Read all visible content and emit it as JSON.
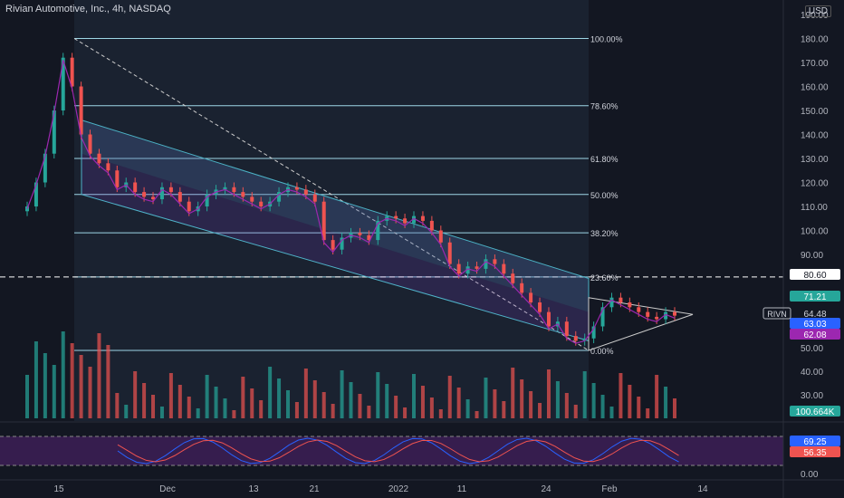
{
  "header": {
    "title": "Rivian Automotive, Inc., 4h, NASDAQ",
    "currency": "USD"
  },
  "chart_data": {
    "type": "candlestick",
    "price_axis": {
      "ticks": [
        "190.00",
        "180.00",
        "170.00",
        "160.00",
        "150.00",
        "140.00",
        "130.00",
        "120.00",
        "110.00",
        "100.00",
        "90.00"
      ]
    },
    "volume_axis": {
      "ticks": [
        "50.00",
        "40.00",
        "30.00"
      ]
    },
    "rsi_axis": {
      "ticks": [
        "69.25",
        "56.35",
        "0.00"
      ]
    },
    "time_axis": {
      "ticks": [
        "15",
        "Dec",
        "13",
        "21",
        "2022",
        "11",
        "24",
        "Feb",
        "14"
      ]
    },
    "fib_levels": [
      {
        "label": "100.00%",
        "price": 180
      },
      {
        "label": "78.60%",
        "price": 152
      },
      {
        "label": "61.80%",
        "price": 130
      },
      {
        "label": "50.00%",
        "price": 115
      },
      {
        "label": "38.20%",
        "price": 99
      },
      {
        "label": "23.60%",
        "price": 80.6
      },
      {
        "label": "0.00%",
        "price": 50
      }
    ],
    "price_labels": [
      {
        "text": "80.60",
        "bg": "#ffffff",
        "fg": "#131722"
      },
      {
        "text": "71.21",
        "bg": "#26a69a",
        "fg": "#ffffff"
      },
      {
        "text": "64.48",
        "bg": "#131722",
        "fg": "#d1d4dc"
      },
      {
        "text": "63.03",
        "bg": "#2962ff",
        "fg": "#ffffff"
      },
      {
        "text": "62.08",
        "bg": "#9c27b0",
        "fg": "#ffffff"
      },
      {
        "text": "100.664K",
        "bg": "#26a69a",
        "fg": "#ffffff"
      },
      {
        "text": "69.25",
        "bg": "#2962ff",
        "fg": "#ffffff"
      },
      {
        "text": "56.35",
        "bg": "#ef5350",
        "fg": "#ffffff"
      }
    ],
    "symbol_label": "RIVN",
    "series_close": [
      110,
      120,
      132,
      150,
      172,
      160,
      140,
      132,
      128,
      125,
      118,
      120,
      116,
      114,
      113,
      118,
      116,
      112,
      108,
      110,
      115,
      117,
      118,
      116,
      114,
      112,
      110,
      112,
      116,
      118,
      117,
      115,
      112,
      96,
      92,
      97,
      99,
      98,
      96,
      104,
      106,
      105,
      103,
      106,
      104,
      100,
      95,
      86,
      82,
      85,
      84,
      88,
      86,
      82,
      78,
      74,
      70,
      66,
      60,
      62,
      56,
      54,
      55,
      60,
      68,
      72,
      70,
      68,
      66,
      64,
      63,
      66,
      64.48
    ],
    "colors": {
      "up": "#26a69a",
      "down": "#ef5350",
      "fib": "#9ed6e6",
      "channel": "#4fb3c9",
      "rsi": "#9c27b0"
    }
  }
}
